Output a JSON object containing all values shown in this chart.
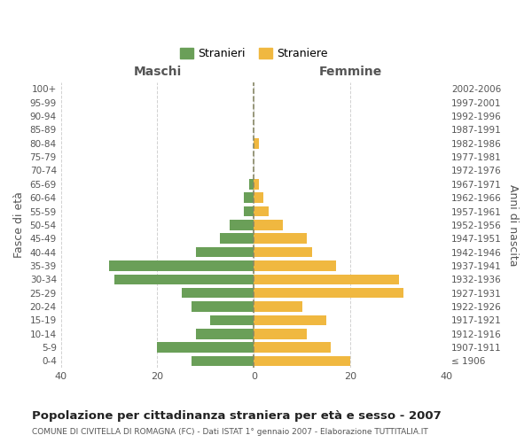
{
  "age_groups": [
    "100+",
    "95-99",
    "90-94",
    "85-89",
    "80-84",
    "75-79",
    "70-74",
    "65-69",
    "60-64",
    "55-59",
    "50-54",
    "45-49",
    "40-44",
    "35-39",
    "30-34",
    "25-29",
    "20-24",
    "15-19",
    "10-14",
    "5-9",
    "0-4"
  ],
  "birth_years": [
    "≤ 1906",
    "1907-1911",
    "1912-1916",
    "1917-1921",
    "1922-1926",
    "1927-1931",
    "1932-1936",
    "1937-1941",
    "1942-1946",
    "1947-1951",
    "1952-1956",
    "1957-1961",
    "1962-1966",
    "1967-1971",
    "1972-1976",
    "1977-1981",
    "1982-1986",
    "1987-1991",
    "1992-1996",
    "1997-2001",
    "2002-2006"
  ],
  "maschi": [
    0,
    0,
    0,
    0,
    0,
    0,
    0,
    1,
    2,
    2,
    5,
    7,
    12,
    30,
    29,
    15,
    13,
    9,
    12,
    20,
    13
  ],
  "femmine": [
    0,
    0,
    0,
    0,
    1,
    0,
    0,
    1,
    2,
    3,
    6,
    11,
    12,
    17,
    30,
    31,
    10,
    15,
    11,
    16,
    20
  ],
  "maschi_color": "#6a9f58",
  "femmine_color": "#f0b840",
  "title": "Popolazione per cittadinanza straniera per età e sesso - 2007",
  "subtitle": "COMUNE DI CIVITELLA DI ROMAGNA (FC) - Dati ISTAT 1° gennaio 2007 - Elaborazione TUTTITALIA.IT",
  "ylabel_left": "Fasce di età",
  "ylabel_right": "Anni di nascita",
  "header_left": "Maschi",
  "header_right": "Femmine",
  "legend_stranieri": "Stranieri",
  "legend_straniere": "Straniere",
  "xlim": 40,
  "background_color": "#ffffff",
  "grid_color": "#cccccc"
}
